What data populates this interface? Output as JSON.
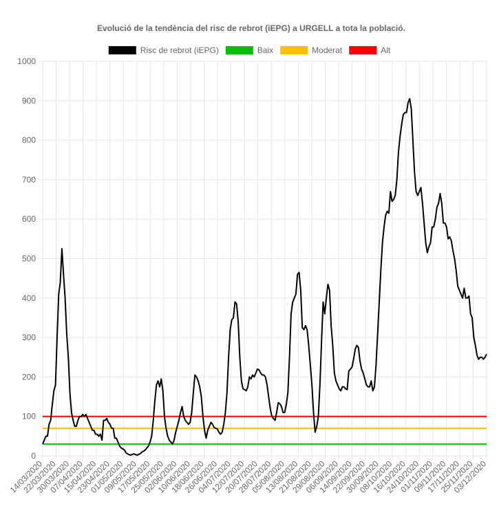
{
  "chart_data": {
    "type": "line",
    "title": "Evolució de la tendència del risc de rebrot (iEPG) a URGELL a tota la població.",
    "xlabel": "",
    "ylabel": "",
    "ylim": [
      0,
      1000
    ],
    "yticks": [
      0,
      100,
      200,
      300,
      400,
      500,
      600,
      700,
      800,
      900,
      1000
    ],
    "grid": true,
    "legend_position": "top",
    "x_tick_labels": [
      "14/03/2020",
      "22/03/2020",
      "30/03/2020",
      "07/04/2020",
      "15/04/2020",
      "23/04/2020",
      "01/05/2020",
      "09/05/2020",
      "17/05/2020",
      "25/05/2020",
      "02/06/2020",
      "10/06/2020",
      "18/06/2020",
      "26/06/2020",
      "04/07/2020",
      "12/07/2020",
      "20/07/2020",
      "28/07/2020",
      "05/08/2020",
      "13/08/2020",
      "21/08/2020",
      "29/08/2020",
      "06/09/2020",
      "14/09/2020",
      "22/09/2020",
      "30/09/2020",
      "08/10/2020",
      "16/10/2020",
      "24/10/2020",
      "01/11/2020",
      "09/11/2020",
      "17/11/2020",
      "25/11/2020",
      "03/12/2020"
    ],
    "series": [
      {
        "name": "Risc de rebrot (iEPG)",
        "color": "#000000",
        "x_start": "2020-03-14",
        "values": [
          30,
          40,
          50,
          50,
          80,
          90,
          130,
          165,
          180,
          300,
          410,
          440,
          525,
          460,
          400,
          310,
          250,
          160,
          110,
          90,
          75,
          75,
          90,
          100,
          100,
          105,
          100,
          105,
          95,
          85,
          75,
          65,
          65,
          55,
          55,
          50,
          55,
          40,
          90,
          90,
          95,
          85,
          80,
          70,
          70,
          45,
          45,
          35,
          25,
          20,
          18,
          15,
          8,
          5,
          3,
          2,
          4,
          5,
          3,
          2,
          4,
          6,
          10,
          12,
          15,
          20,
          25,
          35,
          50,
          90,
          140,
          180,
          190,
          175,
          195,
          165,
          100,
          70,
          50,
          40,
          35,
          30,
          40,
          60,
          75,
          90,
          110,
          125,
          100,
          90,
          85,
          80,
          85,
          110,
          160,
          205,
          200,
          190,
          175,
          150,
          100,
          65,
          45,
          65,
          75,
          85,
          80,
          72,
          70,
          68,
          60,
          55,
          60,
          80,
          110,
          160,
          250,
          320,
          345,
          350,
          390,
          385,
          340,
          250,
          190,
          170,
          168,
          165,
          175,
          200,
          195,
          205,
          200,
          210,
          220,
          218,
          210,
          205,
          205,
          200,
          180,
          150,
          120,
          100,
          95,
          90,
          110,
          135,
          132,
          125,
          110,
          110,
          130,
          160,
          250,
          360,
          390,
          400,
          410,
          460,
          465,
          420,
          325,
          320,
          330,
          320,
          280,
          230,
          180,
          110,
          60,
          75,
          100,
          180,
          290,
          390,
          360,
          400,
          435,
          420,
          330,
          280,
          210,
          190,
          180,
          170,
          165,
          175,
          175,
          170,
          168,
          215,
          220,
          225,
          245,
          270,
          280,
          275,
          240,
          220,
          210,
          195,
          180,
          175,
          175,
          190,
          165,
          175,
          230,
          310,
          390,
          470,
          540,
          580,
          610,
          620,
          615,
          670,
          645,
          650,
          660,
          700,
          770,
          810,
          840,
          865,
          870,
          870,
          895,
          905,
          880,
          800,
          720,
          670,
          660,
          670,
          680,
          640,
          590,
          540,
          515,
          530,
          540,
          580,
          580,
          600,
          630,
          640,
          665,
          640,
          590,
          590,
          580,
          550,
          555,
          545,
          520,
          500,
          470,
          430,
          420,
          410,
          400,
          425,
          400,
          400,
          405,
          360,
          350,
          300,
          280,
          255,
          245,
          250,
          250,
          245,
          250,
          258
        ]
      },
      {
        "name": "Baix",
        "color": "#00c000",
        "constant": 30
      },
      {
        "name": "Moderat",
        "color": "#ffc000",
        "constant": 70
      },
      {
        "name": "Alt",
        "color": "#ff0000",
        "constant": 100
      }
    ]
  }
}
